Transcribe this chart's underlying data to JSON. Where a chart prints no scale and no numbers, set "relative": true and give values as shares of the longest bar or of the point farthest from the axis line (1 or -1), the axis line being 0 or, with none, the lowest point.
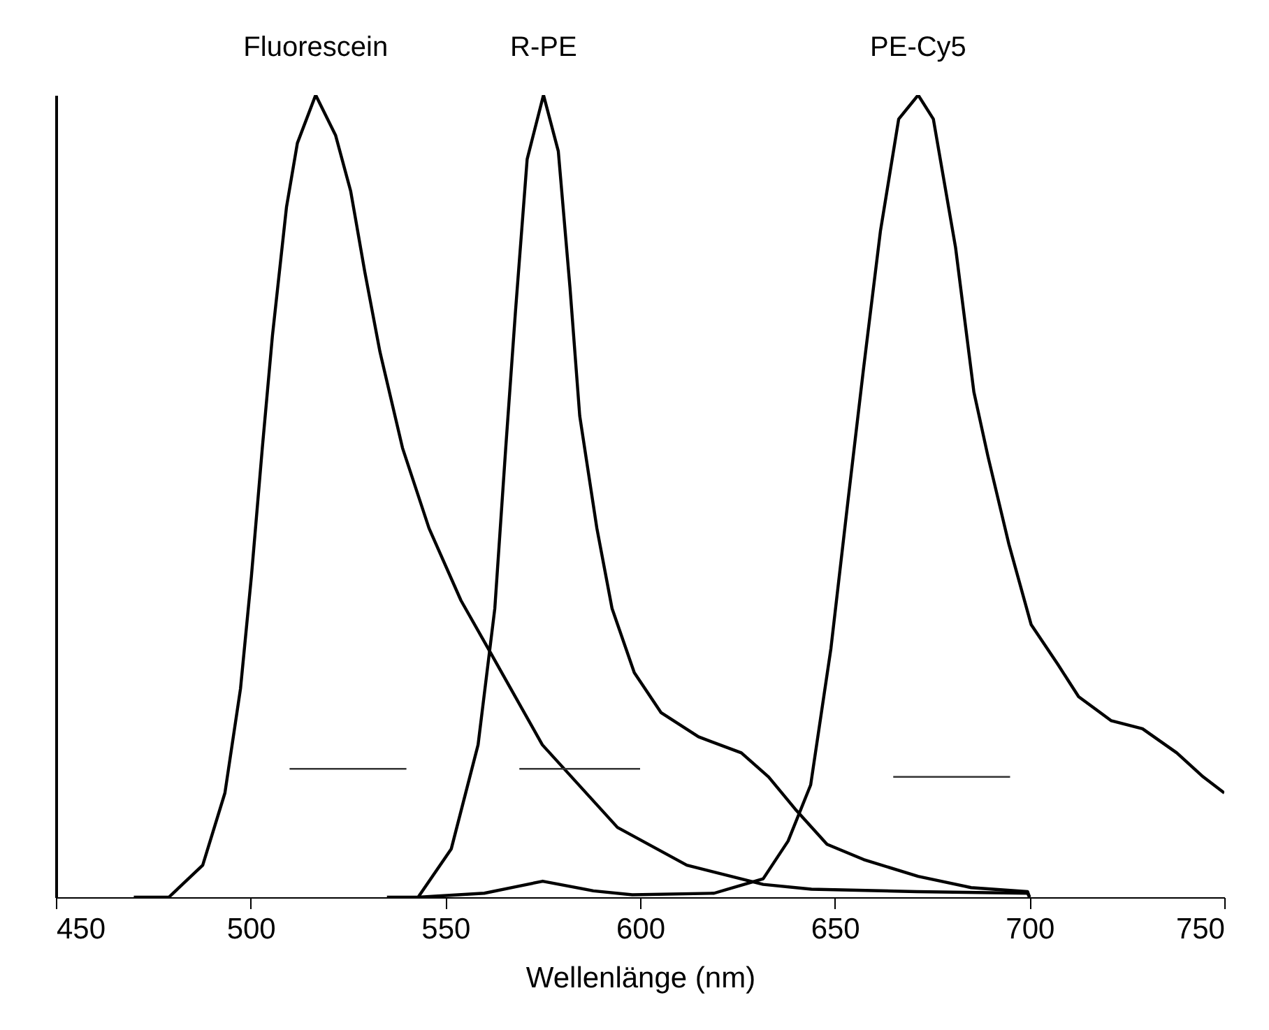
{
  "chart_data": {
    "type": "line",
    "relative": true,
    "xlabel": "Wellenlänge (nm)",
    "xlim": [
      450,
      750
    ],
    "xticks": [
      450,
      500,
      550,
      600,
      650,
      700,
      750
    ],
    "grid": false,
    "series": [
      {
        "name": "Fluorescein",
        "color": "#000000",
        "x": [
          470,
          479,
          487.7,
          493.4,
          497.4,
          500.2,
          503,
          505.6,
          509.2,
          512,
          516.7,
          521.8,
          525.7,
          529.3,
          533.2,
          539,
          545.8,
          554,
          561,
          574.9,
          594.2,
          612,
          631.6,
          644,
          671,
          699.5,
          700
        ],
        "values": [
          0,
          0,
          0.04,
          0.13,
          0.26,
          0.4,
          0.56,
          0.7,
          0.86,
          0.94,
          1,
          0.95,
          0.88,
          0.78,
          0.68,
          0.56,
          0.46,
          0.37,
          0.31,
          0.19,
          0.087,
          0.04,
          0.016,
          0.01,
          0.007,
          0.005,
          0
        ]
      },
      {
        "name": "R-PE",
        "color": "#000000",
        "x": [
          535,
          543,
          551.5,
          558.4,
          562.7,
          565.5,
          568,
          571,
          575.2,
          579,
          582,
          584.5,
          588.9,
          592.8,
          598.5,
          605.4,
          615,
          626,
          633,
          639.8,
          648,
          657.4,
          671.4,
          685,
          699.5,
          700
        ],
        "values": [
          0,
          0,
          0.06,
          0.19,
          0.36,
          0.56,
          0.73,
          0.92,
          1,
          0.93,
          0.76,
          0.6,
          0.46,
          0.36,
          0.28,
          0.23,
          0.2,
          0.18,
          0.15,
          0.11,
          0.066,
          0.047,
          0.026,
          0.012,
          0.007,
          0
        ]
      },
      {
        "name": "PE-Cy5",
        "color": "#000000",
        "x": [
          543,
          560,
          575,
          588,
          598,
          619,
          631.6,
          638,
          643.8,
          649,
          653.4,
          657.4,
          661.7,
          666.4,
          671.4,
          675.3,
          681,
          685.7,
          689.3,
          694.7,
          700.4,
          707.3,
          712.6,
          721,
          729,
          737.8,
          744.6,
          750
        ],
        "values": [
          0,
          0.005,
          0.02,
          0.008,
          0.003,
          0.005,
          0.023,
          0.07,
          0.14,
          0.31,
          0.495,
          0.66,
          0.83,
          0.97,
          1,
          0.97,
          0.81,
          0.63,
          0.55,
          0.44,
          0.34,
          0.29,
          0.25,
          0.22,
          0.21,
          0.18,
          0.15,
          0.13
        ]
      },
      {
        "color": "#333333",
        "x": [
          510,
          540
        ],
        "values": [
          0.16,
          0.16
        ]
      },
      {
        "color": "#333333",
        "x": [
          569,
          600
        ],
        "values": [
          0.16,
          0.16
        ]
      },
      {
        "color": "#333333",
        "x": [
          665,
          695
        ],
        "values": [
          0.15,
          0.15
        ]
      }
    ]
  }
}
